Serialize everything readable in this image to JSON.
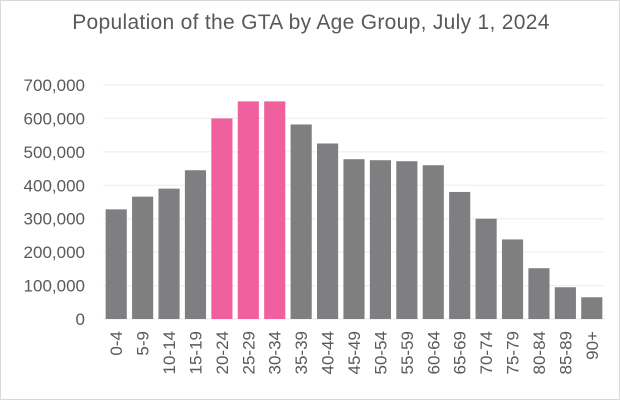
{
  "chart_data": {
    "type": "bar",
    "title": "Population of the GTA by Age Group, July 1, 2024",
    "categories": [
      "0-4",
      "5-9",
      "10-14",
      "15-19",
      "20-24",
      "25-29",
      "30-34",
      "35-39",
      "40-44",
      "45-49",
      "50-54",
      "55-59",
      "60-64",
      "65-69",
      "70-74",
      "75-79",
      "80-84",
      "85-89",
      "90+"
    ],
    "values": [
      328000,
      366000,
      390000,
      445000,
      600000,
      651000,
      651000,
      582000,
      525000,
      478000,
      475000,
      472000,
      460000,
      380000,
      300000,
      238000,
      152000,
      95000,
      65000
    ],
    "highlighted": [
      "20-24",
      "25-29",
      "30-34"
    ],
    "ylim": [
      0,
      700000
    ],
    "yticks": [
      0,
      100000,
      200000,
      300000,
      400000,
      500000,
      600000,
      700000
    ],
    "ytick_labels": [
      "0",
      "100,000",
      "200,000",
      "300,000",
      "400,000",
      "500,000",
      "600,000",
      "700,000"
    ],
    "xlabel": "",
    "ylabel": "",
    "grid": true,
    "legend": "none",
    "colors": {
      "bar": "#7f7e80",
      "highlight": "#f0609e",
      "grid": "#ebebeb",
      "text": "#595959"
    }
  }
}
